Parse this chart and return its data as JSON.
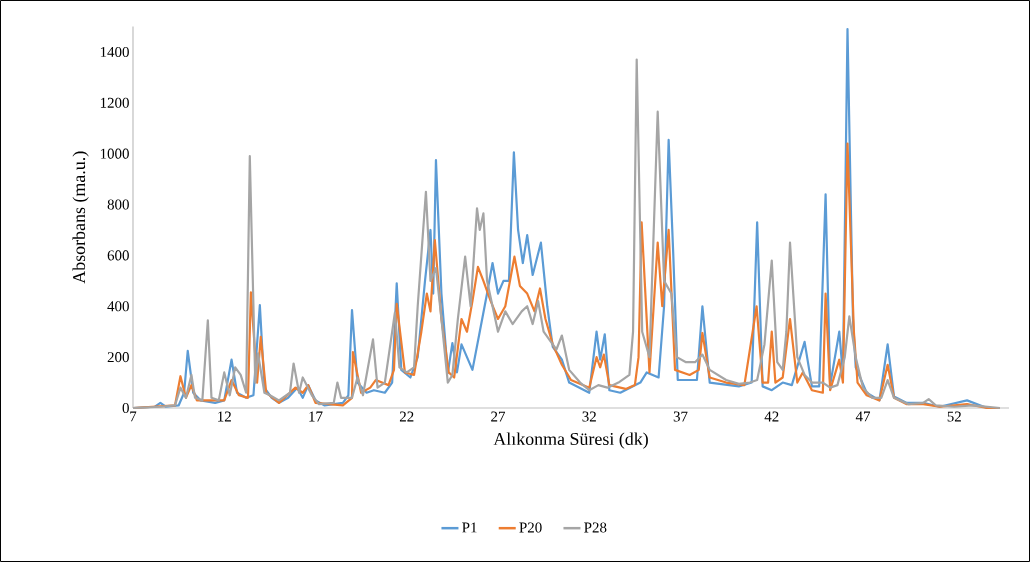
{
  "chart_data": {
    "type": "line",
    "xlabel": "Alıkonma Süresi (dk)",
    "ylabel": "Absorbans (ma.u.)",
    "xlim": [
      7,
      55
    ],
    "ylim": [
      0,
      1500
    ],
    "xticks": [
      7,
      12,
      17,
      22,
      27,
      32,
      37,
      42,
      47,
      52
    ],
    "yticks": [
      0,
      200,
      400,
      600,
      800,
      1000,
      1200,
      1400
    ],
    "legend": "bottom",
    "series": [
      {
        "name": "P1",
        "color": "#5b9bd5",
        "x": [
          7,
          8.2,
          8.5,
          8.8,
          9.5,
          9.8,
          10.0,
          10.3,
          10.7,
          11.5,
          12.0,
          12.4,
          12.7,
          13.2,
          13.6,
          13.95,
          14.2,
          14.6,
          15.0,
          15.5,
          16.0,
          16.3,
          16.6,
          17.0,
          17.5,
          18.5,
          18.8,
          19.0,
          19.3,
          19.8,
          20.2,
          20.8,
          21.2,
          21.45,
          21.7,
          22.2,
          22.6,
          23.0,
          23.3,
          23.45,
          23.6,
          23.9,
          24.25,
          24.5,
          24.75,
          25.0,
          25.3,
          25.6,
          26.0,
          26.4,
          26.7,
          27.0,
          27.3,
          27.6,
          27.87,
          28.1,
          28.36,
          28.6,
          28.9,
          29.35,
          29.7,
          30.0,
          30.5,
          30.9,
          32.0,
          32.4,
          32.6,
          32.85,
          33.1,
          33.7,
          34.8,
          35.15,
          35.8,
          36.1,
          36.35,
          36.6,
          36.85,
          37.9,
          38.2,
          38.6,
          40.2,
          40.9,
          41.2,
          41.5,
          42.0,
          42.6,
          43.1,
          43.8,
          44.2,
          44.6,
          44.95,
          45.2,
          45.7,
          45.9,
          46.15,
          46.45,
          46.6,
          47.2,
          47.9,
          48.35,
          48.7,
          49.4,
          50.3,
          51.2,
          52.7,
          53.8,
          54.5
        ],
        "values": [
          0,
          5,
          20,
          5,
          10,
          60,
          225,
          60,
          30,
          20,
          30,
          190,
          60,
          40,
          50,
          405,
          80,
          40,
          20,
          40,
          80,
          40,
          90,
          30,
          10,
          20,
          50,
          385,
          100,
          60,
          70,
          60,
          100,
          490,
          150,
          120,
          200,
          500,
          700,
          450,
          975,
          450,
          137,
          255,
          140,
          250,
          200,
          150,
          300,
          450,
          570,
          450,
          500,
          500,
          1005,
          700,
          570,
          680,
          523,
          650,
          400,
          240,
          190,
          100,
          60,
          300,
          190,
          290,
          70,
          60,
          100,
          140,
          120,
          400,
          1054,
          610,
          110,
          110,
          400,
          100,
          85,
          100,
          730,
          85,
          70,
          100,
          90,
          260,
          85,
          85,
          840,
          90,
          300,
          130,
          1490,
          350,
          160,
          60,
          30,
          250,
          45,
          20,
          20,
          5,
          30,
          0,
          0
        ]
      },
      {
        "name": "P20",
        "color": "#ed7d31",
        "x": [
          7,
          9.3,
          9.6,
          9.9,
          10.2,
          10.5,
          11.1,
          12.0,
          12.4,
          12.8,
          13.3,
          13.46,
          13.8,
          14.0,
          14.3,
          15.0,
          15.9,
          16.3,
          16.6,
          17.0,
          18.5,
          19.0,
          19.05,
          19.5,
          20.0,
          20.3,
          21.0,
          21.3,
          21.45,
          21.9,
          22.4,
          22.8,
          23.1,
          23.3,
          23.54,
          23.9,
          24.3,
          24.6,
          25.0,
          25.3,
          25.6,
          25.9,
          26.2,
          26.6,
          27.0,
          27.4,
          27.9,
          28.2,
          28.6,
          29.0,
          29.3,
          29.6,
          30.0,
          30.5,
          31.0,
          32.0,
          32.4,
          32.6,
          32.8,
          33.1,
          34.0,
          34.5,
          34.7,
          34.87,
          35.3,
          35.75,
          36.0,
          36.35,
          36.7,
          37.5,
          38.0,
          38.2,
          38.6,
          39.5,
          40.5,
          41.17,
          41.5,
          41.8,
          42.0,
          42.2,
          42.6,
          43.0,
          43.4,
          43.7,
          44.2,
          44.8,
          44.95,
          45.2,
          45.7,
          45.9,
          46.15,
          46.5,
          46.7,
          47.2,
          47.9,
          48.35,
          48.7,
          49.4,
          50.3,
          51.2,
          52.7,
          53.8,
          54.5
        ],
        "values": [
          0,
          10,
          125,
          40,
          90,
          30,
          30,
          30,
          110,
          50,
          40,
          455,
          100,
          280,
          60,
          20,
          80,
          60,
          90,
          20,
          10,
          40,
          220,
          60,
          80,
          110,
          90,
          150,
          410,
          140,
          130,
          300,
          450,
          380,
          660,
          350,
          140,
          120,
          350,
          300,
          420,
          555,
          500,
          420,
          350,
          400,
          595,
          480,
          450,
          380,
          470,
          350,
          250,
          170,
          110,
          80,
          200,
          160,
          210,
          90,
          75,
          90,
          200,
          730,
          140,
          650,
          400,
          700,
          150,
          130,
          150,
          295,
          120,
          100,
          90,
          400,
          100,
          100,
          300,
          100,
          120,
          350,
          100,
          140,
          70,
          60,
          450,
          70,
          190,
          100,
          1040,
          300,
          100,
          50,
          30,
          170,
          40,
          15,
          15,
          5,
          15,
          0,
          0
        ]
      },
      {
        "name": "P28",
        "color": "#a5a5a5",
        "x": [
          7,
          8.5,
          9.3,
          9.6,
          9.9,
          10.2,
          10.4,
          10.8,
          11.1,
          11.3,
          11.7,
          12.0,
          12.3,
          12.6,
          12.9,
          13.2,
          13.4,
          13.7,
          13.85,
          14.2,
          14.5,
          15.0,
          15.6,
          15.8,
          16.1,
          16.3,
          16.8,
          17.2,
          18.0,
          18.2,
          18.4,
          19.0,
          19.3,
          19.6,
          20.15,
          20.4,
          20.8,
          21.35,
          21.6,
          22.0,
          22.4,
          22.6,
          23.05,
          23.3,
          23.6,
          23.9,
          24.25,
          24.5,
          24.8,
          25.2,
          25.5,
          25.85,
          26.0,
          26.2,
          26.4,
          26.7,
          27.0,
          27.4,
          27.8,
          28.3,
          28.6,
          28.9,
          29.2,
          29.5,
          29.9,
          30.2,
          30.5,
          30.9,
          31.5,
          32.0,
          32.5,
          33.0,
          33.6,
          34.2,
          34.4,
          34.6,
          34.9,
          35.3,
          35.75,
          36.1,
          36.5,
          36.8,
          37.3,
          37.8,
          38.2,
          38.6,
          39.5,
          40.2,
          40.8,
          41.2,
          41.6,
          42.0,
          42.3,
          42.6,
          42.8,
          43.0,
          43.4,
          43.8,
          44.2,
          44.8,
          45.2,
          45.6,
          46.0,
          46.25,
          46.6,
          47.0,
          47.5,
          48.0,
          48.35,
          48.7,
          49.5,
          50.3,
          50.6,
          51.0,
          52.0,
          53.0,
          54.5
        ],
        "values": [
          0,
          5,
          10,
          80,
          40,
          130,
          40,
          30,
          345,
          40,
          30,
          140,
          50,
          160,
          130,
          60,
          990,
          100,
          215,
          60,
          50,
          30,
          60,
          175,
          60,
          120,
          50,
          15,
          20,
          100,
          40,
          40,
          120,
          50,
          270,
          80,
          100,
          375,
          160,
          140,
          160,
          400,
          850,
          500,
          550,
          350,
          100,
          130,
          350,
          595,
          400,
          785,
          700,
          765,
          500,
          400,
          300,
          380,
          330,
          380,
          400,
          330,
          420,
          300,
          260,
          230,
          285,
          150,
          100,
          70,
          90,
          80,
          100,
          130,
          300,
          1370,
          300,
          200,
          1165,
          500,
          450,
          200,
          180,
          180,
          210,
          150,
          110,
          95,
          100,
          110,
          250,
          580,
          180,
          150,
          300,
          650,
          200,
          130,
          100,
          100,
          80,
          90,
          200,
          360,
          200,
          80,
          40,
          40,
          110,
          40,
          15,
          20,
          35,
          10,
          5,
          10,
          0
        ]
      }
    ]
  }
}
